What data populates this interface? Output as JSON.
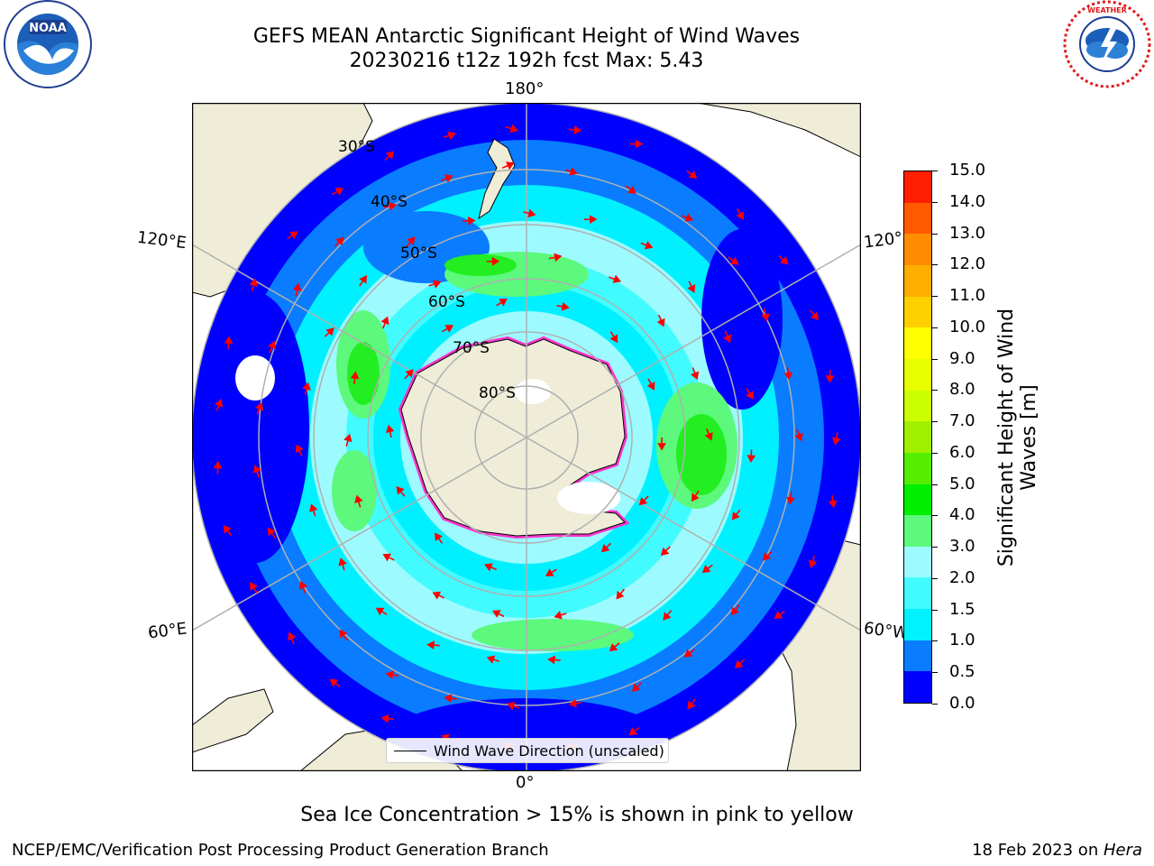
{
  "header": {
    "title_line1": "GEFS MEAN Antarctic Significant Height of Wind Waves",
    "title_line2": "20230216 t12z 192h fcst   Max: 5.43"
  },
  "logos": {
    "left": "noaa-logo",
    "right": "nws-logo"
  },
  "map": {
    "longitude_labels": {
      "top": "180°",
      "bottom": "0°",
      "left_upper": "120°E",
      "right_upper": "120°",
      "left_lower": "60°E",
      "right_lower": "60°W"
    },
    "latitude_labels": [
      "30°S",
      "40°S",
      "50°S",
      "60°S",
      "70°S",
      "80°S"
    ],
    "colors": {
      "land": "#efecd8",
      "ice_edge": "#ff33cc",
      "arrows": "#ff0000",
      "very_calm": "#0000ff",
      "calm": "#0a7cff",
      "moderate": "#00f0ff",
      "light": "#9dfbff",
      "rough": "#22ee22"
    }
  },
  "legend": {
    "wind_wave_label": "Wind Wave Direction (unscaled)"
  },
  "colorbar": {
    "label_line1": "Significant Height of Wind",
    "label_line2": "Waves [m]",
    "ticks": [
      "0.0",
      "0.5",
      "1.0",
      "1.5",
      "2.0",
      "3.0",
      "4.0",
      "5.0",
      "6.0",
      "7.0",
      "8.0",
      "9.0",
      "10.0",
      "11.0",
      "12.0",
      "13.0",
      "14.0",
      "15.0"
    ],
    "colors": [
      "#0000ff",
      "#0a7cff",
      "#00f2ff",
      "#42fbff",
      "#9dfbff",
      "#5cf97c",
      "#00ee00",
      "#55ee00",
      "#a0f000",
      "#ccff00",
      "#e8ff00",
      "#ffff00",
      "#ffd000",
      "#ffae00",
      "#ff8c00",
      "#ff5a00",
      "#ff1e00"
    ]
  },
  "footer": {
    "note": "Sea Ice Concentration > 15% is shown in pink to yellow",
    "left": "NCEP/EMC/Verification Post Processing Product Generation Branch",
    "right_date": "18 Feb 2023 on ",
    "right_machine": "Hera"
  }
}
